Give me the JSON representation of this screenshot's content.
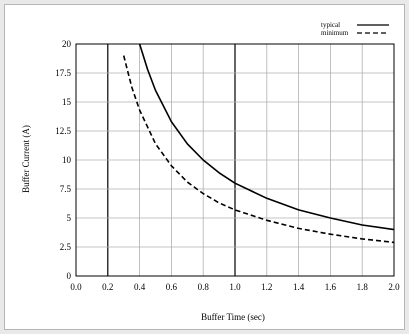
{
  "chart_data": {
    "type": "line",
    "xlabel": "Buffer Time (sec)",
    "ylabel": "Buffer Current (A)",
    "xlim": [
      0,
      2.0
    ],
    "ylim": [
      0,
      20
    ],
    "x_ticks": [
      "0.0",
      "0.2",
      "0.4",
      "0.6",
      "0.8",
      "1.0",
      "1.2",
      "1.4",
      "1.6",
      "1.8",
      "2.0"
    ],
    "y_ticks": [
      "0",
      "2.5",
      "5",
      "7.5",
      "10",
      "12.5",
      "15",
      "17.5",
      "20"
    ],
    "grid": true,
    "legend_position": "top-right",
    "series": [
      {
        "name": "typical",
        "style": "solid",
        "x": [
          0.4,
          0.45,
          0.5,
          0.6,
          0.7,
          0.8,
          0.9,
          1.0,
          1.2,
          1.4,
          1.6,
          1.8,
          2.0
        ],
        "y": [
          20.0,
          17.8,
          16.0,
          13.3,
          11.4,
          10.0,
          8.9,
          8.0,
          6.7,
          5.7,
          5.0,
          4.4,
          4.0
        ]
      },
      {
        "name": "minimum",
        "style": "dashed",
        "x": [
          0.3,
          0.35,
          0.4,
          0.5,
          0.6,
          0.7,
          0.8,
          0.9,
          1.0,
          1.2,
          1.4,
          1.6,
          1.8,
          2.0
        ],
        "y": [
          19.0,
          16.3,
          14.3,
          11.4,
          9.5,
          8.1,
          7.1,
          6.3,
          5.7,
          4.8,
          4.1,
          3.6,
          3.2,
          2.9
        ]
      }
    ]
  }
}
